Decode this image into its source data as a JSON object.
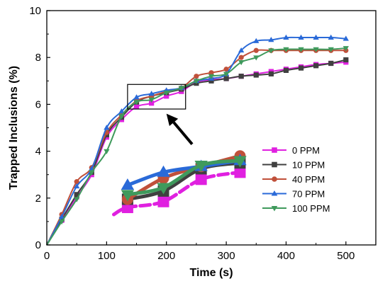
{
  "chart_data": {
    "type": "line",
    "xlabel": "Time (s)",
    "ylabel": "Trapped Inclusions (%)",
    "xlim": [
      0,
      550
    ],
    "ylim": [
      0,
      10
    ],
    "xticks": [
      0,
      100,
      200,
      300,
      400,
      500
    ],
    "yticks": [
      0,
      2,
      4,
      6,
      8,
      10
    ],
    "grid": false,
    "legend_position": "lower-right",
    "series": [
      {
        "name": "0 PPM",
        "color": "#e020e0",
        "marker": "square",
        "x": [
          0,
          25,
          50,
          75,
          100,
          125,
          150,
          175,
          200,
          225,
          250,
          275,
          300,
          325,
          350,
          375,
          400,
          425,
          450,
          475,
          500
        ],
        "y": [
          0,
          1.05,
          2.05,
          3.0,
          4.6,
          5.35,
          5.9,
          6.05,
          6.35,
          6.55,
          6.95,
          7.05,
          7.1,
          7.2,
          7.3,
          7.4,
          7.5,
          7.6,
          7.7,
          7.75,
          7.8
        ]
      },
      {
        "name": "10 PPM",
        "color": "#404040",
        "marker": "square",
        "x": [
          0,
          25,
          50,
          75,
          100,
          125,
          150,
          175,
          200,
          225,
          250,
          275,
          300,
          325,
          350,
          375,
          400,
          425,
          450,
          475,
          500
        ],
        "y": [
          0,
          1.1,
          2.15,
          3.1,
          4.7,
          5.45,
          6.1,
          6.35,
          6.5,
          6.65,
          6.9,
          7.0,
          7.1,
          7.2,
          7.25,
          7.3,
          7.45,
          7.55,
          7.65,
          7.75,
          7.9
        ]
      },
      {
        "name": "40 PPM",
        "color": "#c0503a",
        "marker": "circle",
        "x": [
          0,
          25,
          50,
          75,
          100,
          125,
          150,
          175,
          200,
          225,
          250,
          275,
          300,
          325,
          350,
          375,
          400,
          425,
          450,
          475,
          500
        ],
        "y": [
          0,
          1.3,
          2.7,
          3.3,
          4.8,
          5.55,
          6.15,
          6.35,
          6.55,
          6.7,
          7.2,
          7.35,
          7.5,
          8.0,
          8.3,
          8.3,
          8.3,
          8.3,
          8.3,
          8.3,
          8.3
        ]
      },
      {
        "name": "70 PPM",
        "color": "#2a6ad8",
        "marker": "triangle-up",
        "x": [
          0,
          25,
          50,
          75,
          100,
          125,
          150,
          175,
          200,
          225,
          250,
          275,
          300,
          325,
          350,
          375,
          400,
          425,
          450,
          475,
          500
        ],
        "y": [
          0,
          1.2,
          2.5,
          3.25,
          5.0,
          5.7,
          6.3,
          6.45,
          6.6,
          6.7,
          7.0,
          7.1,
          7.3,
          8.3,
          8.7,
          8.75,
          8.85,
          8.85,
          8.85,
          8.85,
          8.8
        ]
      },
      {
        "name": "100 PPM",
        "color": "#3f9a5c",
        "marker": "triangle-down",
        "x": [
          0,
          25,
          50,
          75,
          100,
          125,
          150,
          175,
          200,
          225,
          250,
          275,
          300,
          325,
          350,
          375,
          400,
          425,
          450,
          475,
          500
        ],
        "y": [
          0,
          1.0,
          1.95,
          3.1,
          4.0,
          5.5,
          6.1,
          6.2,
          6.5,
          6.7,
          7.0,
          7.2,
          7.3,
          7.8,
          8.0,
          8.3,
          8.35,
          8.35,
          8.35,
          8.35,
          8.4
        ]
      }
    ],
    "annotations": [
      {
        "type": "zoom-box",
        "x_range": [
          135,
          232
        ],
        "y_range": [
          5.8,
          6.85
        ]
      },
      {
        "type": "arrow",
        "from": [
          243,
          4.3
        ],
        "to": [
          200,
          5.6
        ]
      },
      {
        "type": "inset",
        "note": "zoomed view of boxed region",
        "x": [
          135,
          195,
          258,
          323
        ],
        "series": [
          {
            "name": "0 PPM",
            "color": "#e020e0",
            "marker": "square",
            "y": [
              1.6,
              1.85,
              2.8,
              3.1
            ]
          },
          {
            "name": "10 PPM",
            "color": "#404040",
            "marker": "square",
            "y": [
              1.95,
              2.3,
              3.25,
              3.5
            ]
          },
          {
            "name": "40 PPM",
            "color": "#c0503a",
            "marker": "circle",
            "y": [
              1.95,
              2.85,
              3.35,
              3.8
            ]
          },
          {
            "name": "70 PPM",
            "color": "#2a6ad8",
            "marker": "triangle-up",
            "y": [
              2.55,
              3.1,
              3.35,
              3.6
            ]
          },
          {
            "name": "100 PPM",
            "color": "#3f9a5c",
            "marker": "triangle-down",
            "y": [
              2.15,
              2.45,
              3.4,
              3.6
            ]
          }
        ]
      }
    ]
  }
}
